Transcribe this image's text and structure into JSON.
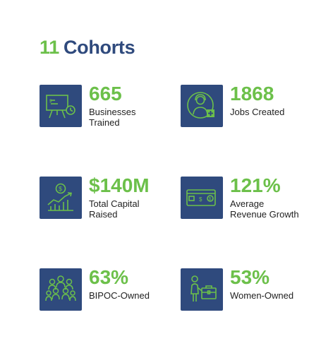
{
  "header": {
    "count": "11",
    "title": "Cohorts"
  },
  "colors": {
    "accent_green": "#6cc04a",
    "tile_navy": "#2f4a7d",
    "text": "#222222"
  },
  "stats": [
    {
      "value": "665",
      "label_line1": "Businesses",
      "label_line2": "Trained",
      "icon": "presentation-board-icon"
    },
    {
      "value": "1868",
      "label_line1": "Jobs Created",
      "label_line2": "",
      "icon": "person-add-icon"
    },
    {
      "value": "$140M",
      "label_line1": "Total Capital",
      "label_line2": "Raised",
      "icon": "capital-growth-chart-icon"
    },
    {
      "value": "121%",
      "label_line1": "Average",
      "label_line2": "Revenue Growth",
      "icon": "wallet-revenue-icon"
    },
    {
      "value": "63%",
      "label_line1": "BIPOC-Owned",
      "label_line2": "",
      "icon": "group-of-people-icon"
    },
    {
      "value": "53%",
      "label_line1": "Women-Owned",
      "label_line2": "",
      "icon": "businesswoman-briefcase-icon"
    }
  ]
}
